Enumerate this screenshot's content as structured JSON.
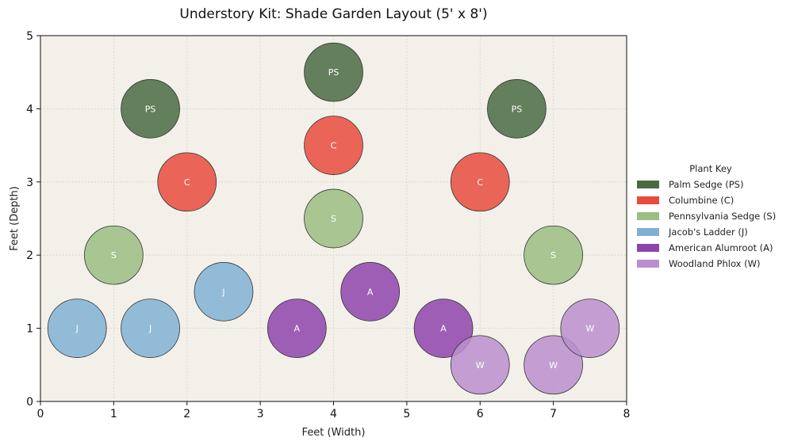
{
  "chart_data": {
    "type": "scatter",
    "title": "Understory Kit: Shade Garden Layout (5' x 8')",
    "xlabel": "Feet (Width)",
    "ylabel": "Feet (Depth)",
    "xlim": [
      0,
      8
    ],
    "ylim": [
      0,
      5
    ],
    "xticks": [
      0,
      1,
      2,
      3,
      4,
      5,
      6,
      7,
      8
    ],
    "yticks": [
      0,
      1,
      2,
      3,
      4,
      5
    ],
    "grid": true,
    "plot_background": "#f3f0ea",
    "plant_diameter_ft": 0.8,
    "legend": {
      "title": "Plant Key",
      "position": "right",
      "items": [
        {
          "code": "PS",
          "label": "Palm Sedge (PS)",
          "color": "#4a6b42"
        },
        {
          "code": "C",
          "label": "Columbine (C)",
          "color": "#e84c3d"
        },
        {
          "code": "S",
          "label": "Pennsylvania Sedge (S)",
          "color": "#9bbe83"
        },
        {
          "code": "J",
          "label": "Jacob's Ladder (J)",
          "color": "#80b1d3"
        },
        {
          "code": "A",
          "label": "American Alumroot (A)",
          "color": "#8e44ad"
        },
        {
          "code": "W",
          "label": "Woodland Phlox (W)",
          "color": "#bb8fce"
        }
      ]
    },
    "series": [
      {
        "name": "Palm Sedge (PS)",
        "code": "PS",
        "points": [
          [
            1.5,
            4.0
          ],
          [
            4.0,
            4.5
          ],
          [
            6.5,
            4.0
          ]
        ]
      },
      {
        "name": "Columbine (C)",
        "code": "C",
        "points": [
          [
            2.0,
            3.0
          ],
          [
            4.0,
            3.5
          ],
          [
            6.0,
            3.0
          ]
        ]
      },
      {
        "name": "Pennsylvania Sedge (S)",
        "code": "S",
        "points": [
          [
            1.0,
            2.0
          ],
          [
            4.0,
            2.5
          ],
          [
            7.0,
            2.0
          ]
        ]
      },
      {
        "name": "Jacob's Ladder (J)",
        "code": "J",
        "points": [
          [
            0.5,
            1.0
          ],
          [
            1.5,
            1.0
          ],
          [
            2.5,
            1.5
          ]
        ]
      },
      {
        "name": "American Alumroot (A)",
        "code": "A",
        "points": [
          [
            3.5,
            1.0
          ],
          [
            4.5,
            1.5
          ],
          [
            5.5,
            1.0
          ]
        ]
      },
      {
        "name": "Woodland Phlox (W)",
        "code": "W",
        "points": [
          [
            6.0,
            0.5
          ],
          [
            7.0,
            0.5
          ],
          [
            7.5,
            1.0
          ]
        ]
      }
    ]
  }
}
